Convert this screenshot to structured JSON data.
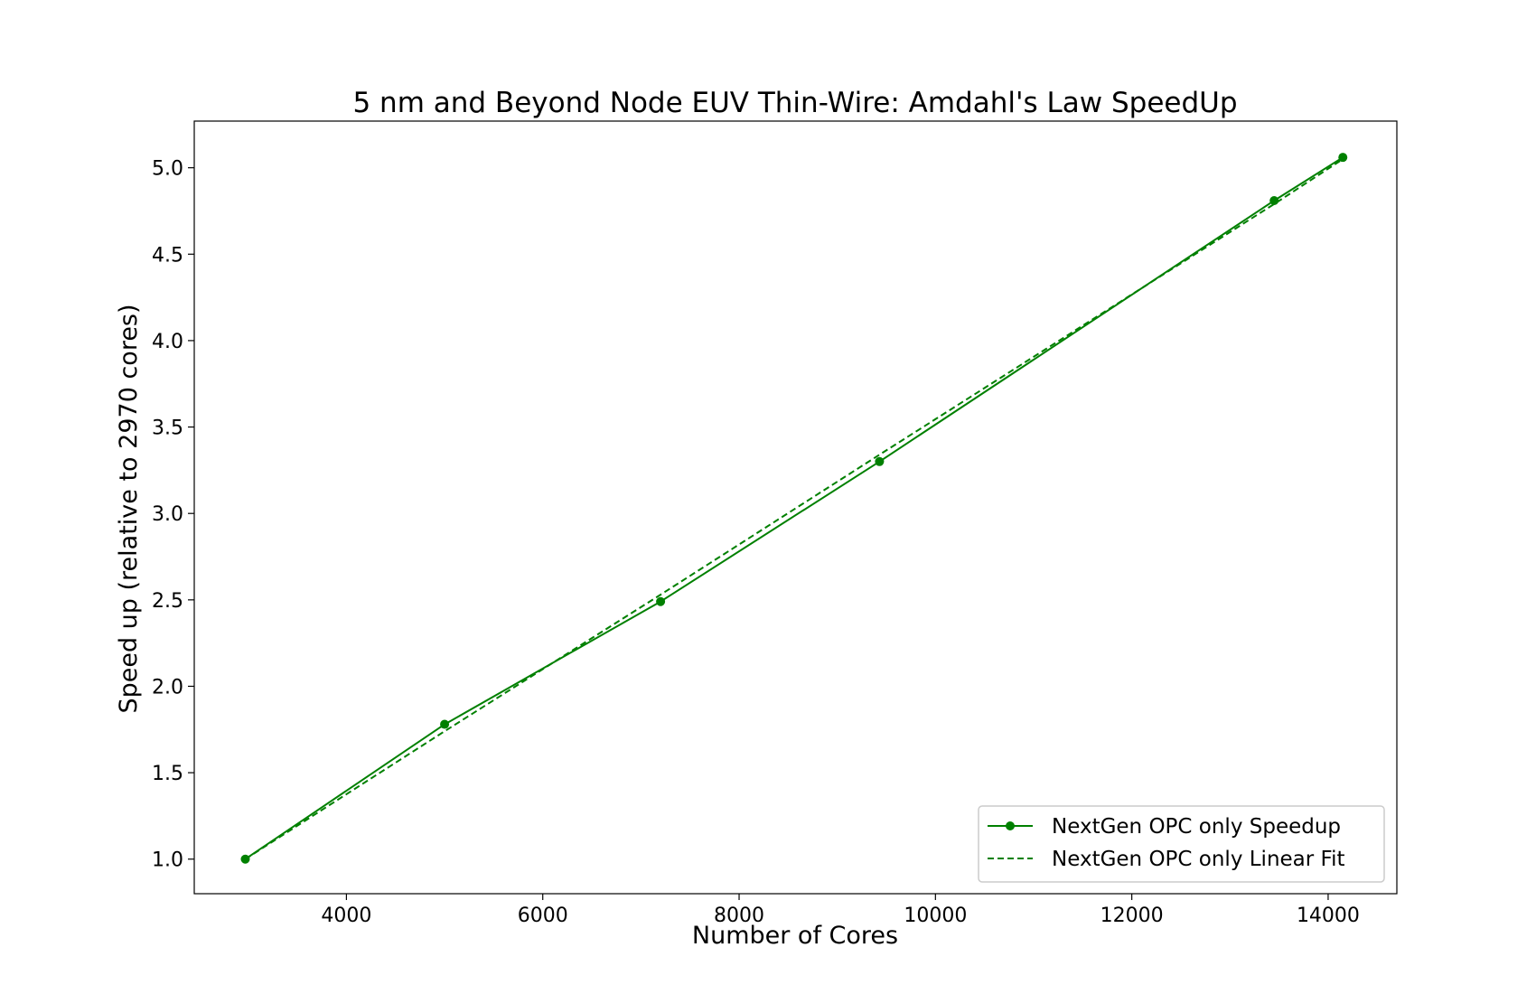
{
  "chart_data": {
    "type": "line",
    "title": "5 nm and Beyond Node EUV Thin-Wire: Amdahl's Law SpeedUp",
    "xlabel": "Number of Cores",
    "ylabel": "Speed up (relative to 2970 cores)",
    "xlim": [
      2450,
      14700
    ],
    "ylim": [
      0.8,
      5.27
    ],
    "xticks": [
      4000,
      6000,
      8000,
      10000,
      12000,
      14000
    ],
    "yticks": [
      1.0,
      1.5,
      2.0,
      2.5,
      3.0,
      3.5,
      4.0,
      4.5,
      5.0
    ],
    "xtick_labels": [
      "4000",
      "6000",
      "8000",
      "10000",
      "12000",
      "14000"
    ],
    "ytick_labels": [
      "1.0",
      "1.5",
      "2.0",
      "2.5",
      "3.0",
      "3.5",
      "4.0",
      "4.5",
      "5.0"
    ],
    "grid": false,
    "legend_position": "lower-right",
    "series": [
      {
        "name": "NextGen OPC only Speedup",
        "style": "solid-marker",
        "color": "#008000",
        "x": [
          2970,
          5000,
          7200,
          9430,
          13450,
          14150
        ],
        "y": [
          1.0,
          1.78,
          2.49,
          3.3,
          4.81,
          5.06
        ]
      },
      {
        "name": "NextGen OPC only Linear Fit",
        "style": "dashed",
        "color": "#008000",
        "x": [
          2970,
          5000,
          7200,
          9430,
          13450,
          14150
        ],
        "y": [
          1.0,
          1.74,
          2.53,
          3.34,
          4.79,
          5.05
        ]
      }
    ]
  }
}
